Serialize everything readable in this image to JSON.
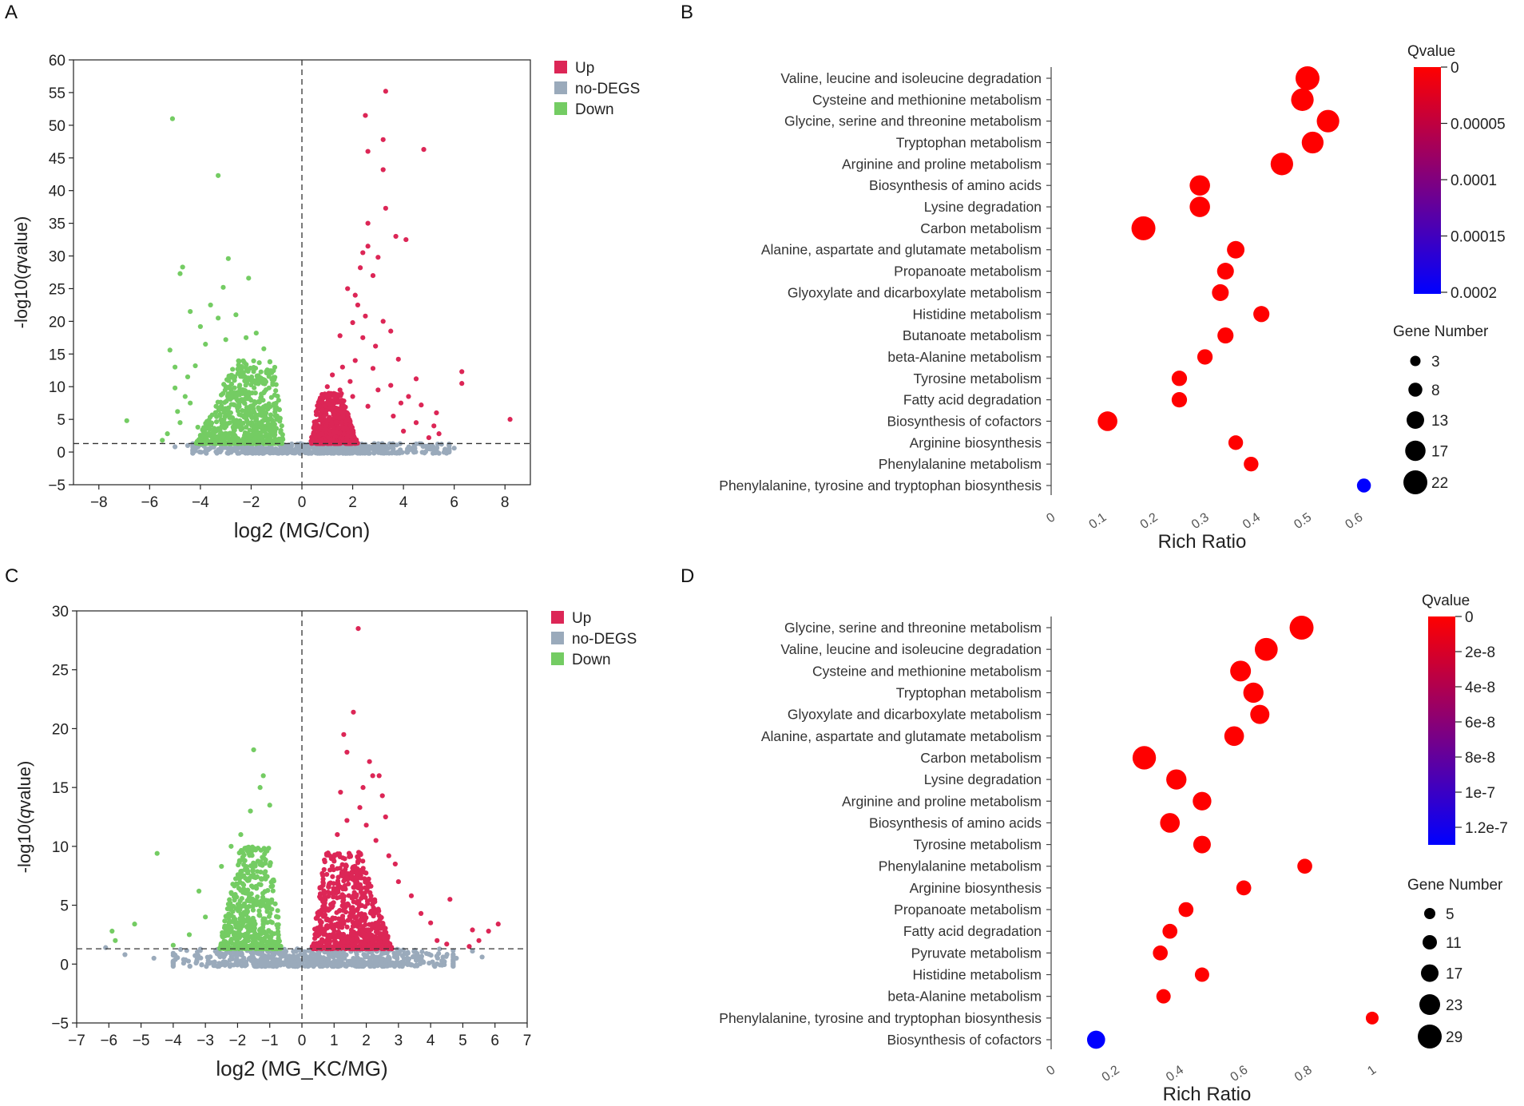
{
  "panels": {
    "A": {
      "letter": "A"
    },
    "B": {
      "letter": "B"
    },
    "C": {
      "letter": "C"
    },
    "D": {
      "letter": "D"
    }
  },
  "colors": {
    "up": "#dc2656",
    "nodeg": "#9aaabb",
    "down": "#74cc63",
    "q_low": "#ff0000",
    "q_high": "#0000ff"
  },
  "chart_data": [
    {
      "id": "A",
      "type": "scatter",
      "title": "",
      "xlabel": "log2 (MG/Con)",
      "ylabel_prefix": "-log10(",
      "ylabel_italic": "q",
      "ylabel_suffix": "value)",
      "xlim": [
        -9,
        9
      ],
      "ylim": [
        -5,
        60
      ],
      "xticks": [
        -8,
        -6,
        -4,
        -2,
        0,
        2,
        4,
        6,
        8
      ],
      "yticks": [
        -5,
        0,
        5,
        10,
        15,
        20,
        25,
        30,
        35,
        40,
        45,
        50,
        55,
        60
      ],
      "threshold_y": 1.3,
      "threshold_x": 0,
      "legend": [
        "Up",
        "no-DEGS",
        "Down"
      ],
      "legend_position": "top-right",
      "series": [
        {
          "name": "Up",
          "points": [
            [
              3.3,
              55.2
            ],
            [
              2.5,
              51.5
            ],
            [
              3.2,
              47.8
            ],
            [
              4.8,
              46.3
            ],
            [
              2.6,
              46.0
            ],
            [
              3.2,
              43.2
            ],
            [
              3.3,
              37.3
            ],
            [
              2.6,
              35.0
            ],
            [
              4.1,
              32.5
            ],
            [
              3.7,
              33.0
            ],
            [
              2.6,
              31.5
            ],
            [
              2.4,
              30.5
            ],
            [
              3.0,
              29.8
            ],
            [
              2.3,
              28.2
            ],
            [
              2.8,
              27.0
            ],
            [
              1.8,
              25.0
            ],
            [
              2.1,
              24.0
            ],
            [
              2.2,
              22.5
            ],
            [
              2.5,
              20.8
            ],
            [
              3.2,
              20.0
            ],
            [
              2.0,
              19.8
            ],
            [
              3.5,
              18.5
            ],
            [
              1.5,
              17.8
            ],
            [
              2.4,
              17.5
            ],
            [
              2.9,
              16.2
            ],
            [
              3.8,
              14.2
            ],
            [
              2.1,
              14.0
            ],
            [
              1.6,
              13.0
            ],
            [
              2.8,
              12.8
            ],
            [
              6.3,
              12.3
            ],
            [
              6.3,
              10.5
            ],
            [
              4.5,
              11.2
            ],
            [
              3.5,
              10.2
            ],
            [
              4.2,
              8.5
            ],
            [
              3.0,
              9.5
            ],
            [
              4.7,
              7.2
            ],
            [
              3.9,
              7.5
            ],
            [
              5.3,
              6.0
            ],
            [
              5.2,
              4.0
            ],
            [
              4.5,
              4.5
            ],
            [
              8.2,
              5.0
            ],
            [
              5.0,
              2.2
            ],
            [
              5.4,
              2.8
            ],
            [
              4.0,
              3.2
            ],
            [
              3.6,
              5.5
            ],
            [
              2.6,
              7.0
            ],
            [
              2.0,
              8.5
            ],
            [
              1.5,
              9.5
            ],
            [
              1.0,
              10.0
            ],
            [
              0.8,
              8.5
            ],
            [
              1.2,
              11.8
            ],
            [
              1.9,
              10.8
            ]
          ],
          "cluster": {
            "xmin": 0.3,
            "xmax": 2.2,
            "ymin": 1.3,
            "ymax": 9.0,
            "count": 600
          }
        },
        {
          "name": "Down",
          "points": [
            [
              -5.1,
              51.0
            ],
            [
              -3.3,
              42.3
            ],
            [
              -4.7,
              28.3
            ],
            [
              -2.9,
              29.6
            ],
            [
              -4.8,
              27.3
            ],
            [
              -3.1,
              25.2
            ],
            [
              -2.1,
              26.6
            ],
            [
              -3.6,
              22.5
            ],
            [
              -4.4,
              21.5
            ],
            [
              -5.2,
              15.6
            ],
            [
              -4.0,
              19.2
            ],
            [
              -3.3,
              20.5
            ],
            [
              -2.6,
              21.0
            ],
            [
              -1.8,
              18.2
            ],
            [
              -6.9,
              4.8
            ],
            [
              -5.0,
              9.8
            ],
            [
              -5.3,
              2.8
            ],
            [
              -5.5,
              1.8
            ],
            [
              -4.9,
              6.2
            ],
            [
              -4.6,
              8.5
            ],
            [
              -4.2,
              13.2
            ],
            [
              -4.5,
              11.5
            ],
            [
              -3.8,
              16.5
            ],
            [
              -2.2,
              17.5
            ],
            [
              -1.5,
              15.8
            ],
            [
              -3.0,
              17.2
            ],
            [
              -4.8,
              4.5
            ],
            [
              -4.1,
              3.8
            ],
            [
              -5.0,
              13.0
            ],
            [
              -4.4,
              7.5
            ]
          ],
          "cluster": {
            "xmin": -4.2,
            "xmax": -0.7,
            "ymin": 1.3,
            "ymax": 14.0,
            "count": 650
          }
        },
        {
          "name": "no-DEGS",
          "points": [
            [
              -4.5,
              1.0
            ],
            [
              -5.0,
              0.8
            ],
            [
              5.0,
              1.0
            ],
            [
              6.0,
              0.6
            ],
            [
              5.5,
              1.2
            ],
            [
              -2.0,
              0.3
            ]
          ],
          "cluster": {
            "xmin": -4.3,
            "xmax": 5.8,
            "ymin": -0.2,
            "ymax": 1.3,
            "count": 600
          }
        }
      ]
    },
    {
      "id": "B",
      "type": "scatter",
      "subtype": "bubble",
      "xlabel": "Rich Ratio",
      "xlim": [
        0,
        0.62
      ],
      "xticks": [
        0,
        0.1,
        0.2,
        0.3,
        0.4,
        0.5,
        0.6
      ],
      "xtick_labels": [
        "0",
        "0.1",
        "0.2",
        "0.3",
        "0.4",
        "0.5",
        "0.6"
      ],
      "color_title": "Qvalue",
      "color_range": [
        0,
        0.0002
      ],
      "color_ticks": [
        "0",
        "0.00005",
        "0.0001",
        "0.00015",
        "0.0002"
      ],
      "size_title": "Gene Number",
      "size_legend": [
        3,
        8,
        13,
        17,
        22
      ],
      "categories": [
        "Valine, leucine and isoleucine degradation",
        "Cysteine and methionine metabolism",
        "Glycine, serine and threonine metabolism",
        "Tryptophan metabolism",
        "Arginine and proline metabolism",
        "Biosynthesis of amino acids",
        "Lysine degradation",
        "Carbon metabolism",
        "Alanine, aspartate and glutamate metabolism",
        "Propanoate metabolism",
        "Glyoxylate and dicarboxylate metabolism",
        "Histidine metabolism",
        "Butanoate metabolism",
        "beta-Alanine metabolism",
        "Tyrosine metabolism",
        "Fatty acid degradation",
        "Biosynthesis of cofactors",
        "Arginine biosynthesis",
        "Phenylalanine metabolism",
        "Phenylalanine, tyrosine and tryptophan biosynthesis"
      ],
      "rich_ratio": [
        0.5,
        0.49,
        0.54,
        0.51,
        0.45,
        0.29,
        0.29,
        0.18,
        0.36,
        0.34,
        0.33,
        0.41,
        0.34,
        0.3,
        0.25,
        0.25,
        0.11,
        0.36,
        0.39,
        0.61
      ],
      "gene_number": [
        22,
        20,
        20,
        19,
        20,
        17,
        17,
        22,
        13,
        12,
        12,
        11,
        11,
        10,
        10,
        10,
        16,
        9,
        9,
        8
      ],
      "qvalue": [
        0,
        0,
        0,
        0,
        0,
        0,
        0,
        0,
        0,
        0,
        0,
        0,
        0,
        0,
        0,
        0,
        0,
        0,
        0,
        0.0002
      ]
    },
    {
      "id": "C",
      "type": "scatter",
      "xlabel": "log2 (MG_KC/MG)",
      "ylabel_prefix": "-log10(",
      "ylabel_italic": "q",
      "ylabel_suffix": "value)",
      "xlim": [
        -7,
        7
      ],
      "ylim": [
        -5,
        30
      ],
      "xticks": [
        -7,
        -6,
        -5,
        -4,
        -3,
        -2,
        -1,
        0,
        1,
        2,
        3,
        4,
        5,
        6,
        7
      ],
      "yticks": [
        -5,
        0,
        5,
        10,
        15,
        20,
        25,
        30
      ],
      "threshold_y": 1.3,
      "threshold_x": 0,
      "legend": [
        "Up",
        "no-DEGS",
        "Down"
      ],
      "legend_position": "top-right",
      "series": [
        {
          "name": "Up",
          "points": [
            [
              1.75,
              28.5
            ],
            [
              1.6,
              21.4
            ],
            [
              1.3,
              19.5
            ],
            [
              1.4,
              18.0
            ],
            [
              2.1,
              17.2
            ],
            [
              2.2,
              16.0
            ],
            [
              2.4,
              16.0
            ],
            [
              1.9,
              15.0
            ],
            [
              2.5,
              14.3
            ],
            [
              1.2,
              14.6
            ],
            [
              1.8,
              13.3
            ],
            [
              2.6,
              12.5
            ],
            [
              1.4,
              12.2
            ],
            [
              2.0,
              11.8
            ],
            [
              2.3,
              10.5
            ],
            [
              2.9,
              8.5
            ],
            [
              3.0,
              7.0
            ],
            [
              3.4,
              5.8
            ],
            [
              3.7,
              4.3
            ],
            [
              4.0,
              3.5
            ],
            [
              4.6,
              5.5
            ],
            [
              4.2,
              2.0
            ],
            [
              5.3,
              2.9
            ],
            [
              5.5,
              2.0
            ],
            [
              5.2,
              1.5
            ],
            [
              6.1,
              3.4
            ],
            [
              5.8,
              2.8
            ],
            [
              4.5,
              1.7
            ],
            [
              2.7,
              9.2
            ],
            [
              1.1,
              11.0
            ]
          ],
          "cluster": {
            "xmin": 0.3,
            "xmax": 2.8,
            "ymin": 1.3,
            "ymax": 9.5,
            "count": 700
          }
        },
        {
          "name": "Down",
          "points": [
            [
              -1.5,
              18.2
            ],
            [
              -1.2,
              16.0
            ],
            [
              -1.3,
              15.0
            ],
            [
              -4.5,
              9.4
            ],
            [
              -5.9,
              2.8
            ],
            [
              -5.2,
              3.4
            ],
            [
              -5.8,
              2.0
            ],
            [
              -3.0,
              4.0
            ],
            [
              -3.2,
              6.2
            ],
            [
              -2.5,
              8.3
            ],
            [
              -1.9,
              11.0
            ],
            [
              -1.0,
              13.5
            ],
            [
              -1.6,
              13.0
            ],
            [
              -3.5,
              2.5
            ],
            [
              -4.0,
              1.6
            ],
            [
              -2.2,
              10.0
            ]
          ],
          "cluster": {
            "xmin": -2.6,
            "xmax": -0.6,
            "ymin": 1.3,
            "ymax": 10.0,
            "count": 520
          }
        },
        {
          "name": "no-DEGS",
          "points": [
            [
              -5.5,
              0.8
            ],
            [
              -4.6,
              0.5
            ],
            [
              5.3,
              1.1
            ],
            [
              5.6,
              0.6
            ],
            [
              -6.1,
              1.4
            ],
            [
              4.8,
              0.5
            ]
          ],
          "cluster": {
            "xmin": -4.0,
            "xmax": 4.7,
            "ymin": -0.2,
            "ymax": 1.3,
            "count": 650
          }
        }
      ]
    },
    {
      "id": "D",
      "type": "scatter",
      "subtype": "bubble",
      "xlabel": "Rich Ratio",
      "xlim": [
        0,
        1.02
      ],
      "xticks": [
        0,
        0.2,
        0.4,
        0.6,
        0.8,
        1
      ],
      "xtick_labels": [
        "0",
        "0.2",
        "0.4",
        "0.6",
        "0.8",
        "1"
      ],
      "color_title": "Qvalue",
      "color_range": [
        0,
        1.3e-07
      ],
      "color_ticks": [
        "0",
        "2e-8",
        "4e-8",
        "6e-8",
        "8e-8",
        "1e-7",
        "1.2e-7"
      ],
      "size_title": "Gene Number",
      "size_legend": [
        5,
        11,
        17,
        23,
        29
      ],
      "categories": [
        "Glycine, serine and threonine metabolism",
        "Valine, leucine and isoleucine degradation",
        "Cysteine and methionine metabolism",
        "Tryptophan metabolism",
        "Glyoxylate and dicarboxylate metabolism",
        "Alanine, aspartate and glutamate metabolism",
        "Carbon metabolism",
        "Lysine degradation",
        "Arginine and proline metabolism",
        "Biosynthesis of amino acids",
        "Tyrosine metabolism",
        "Phenylalanine metabolism",
        "Arginine biosynthesis",
        "Propanoate metabolism",
        "Fatty acid degradation",
        "Pyruvate metabolism",
        "Histidine metabolism",
        "beta-Alanine metabolism",
        "Phenylalanine, tyrosine and tryptophan biosynthesis",
        "Biosynthesis of cofactors"
      ],
      "rich_ratio": [
        0.78,
        0.67,
        0.59,
        0.63,
        0.65,
        0.57,
        0.29,
        0.39,
        0.47,
        0.37,
        0.47,
        0.79,
        0.6,
        0.42,
        0.37,
        0.34,
        0.47,
        0.35,
        1.0,
        0.14
      ],
      "gene_number": [
        29,
        27,
        23,
        22,
        20,
        21,
        28,
        22,
        19,
        21,
        17,
        12,
        12,
        12,
        12,
        12,
        11,
        11,
        8,
        18
      ],
      "qvalue": [
        0,
        0,
        0,
        0,
        0,
        0,
        0,
        0,
        0,
        0,
        0,
        0,
        0,
        0,
        0,
        0,
        0,
        0,
        0,
        1.3e-07
      ]
    }
  ]
}
